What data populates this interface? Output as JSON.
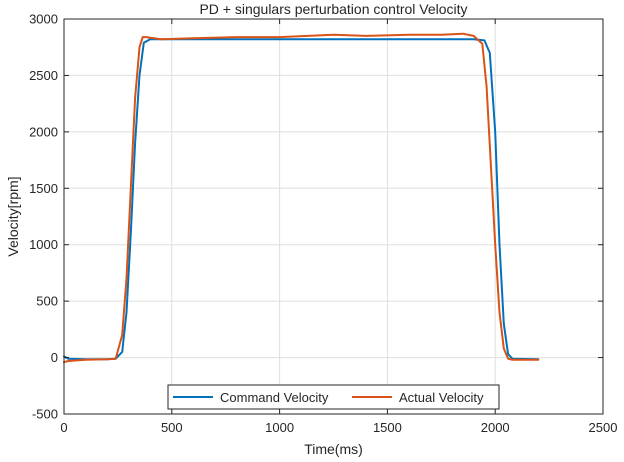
{
  "chart_data": {
    "type": "line",
    "title": "PD + singulars perturbation control Velocity",
    "xlabel": "Time(ms)",
    "ylabel": "Velocity[rpm]",
    "xlim": [
      0,
      2500
    ],
    "ylim": [
      -500,
      3000
    ],
    "xticks": [
      0,
      500,
      1000,
      1500,
      2000,
      2500
    ],
    "yticks": [
      -500,
      0,
      500,
      1000,
      1500,
      2000,
      2500,
      3000
    ],
    "grid": true,
    "legend_position": "bottom-center",
    "series": [
      {
        "name": "Command Velocity",
        "color": "#0072BD",
        "x": [
          0,
          20,
          100,
          200,
          240,
          270,
          290,
          310,
          330,
          350,
          370,
          400,
          500,
          1000,
          1500,
          1900,
          1950,
          1975,
          2000,
          2020,
          2040,
          2060,
          2080,
          2200
        ],
        "y": [
          10,
          -10,
          -15,
          -15,
          -10,
          50,
          400,
          1100,
          1900,
          2500,
          2790,
          2820,
          2820,
          2820,
          2820,
          2820,
          2810,
          2700,
          2000,
          1000,
          300,
          30,
          -10,
          -15
        ]
      },
      {
        "name": "Actual Velocity",
        "color": "#D95319",
        "x": [
          0,
          20,
          100,
          200,
          240,
          270,
          290,
          310,
          330,
          350,
          365,
          380,
          450,
          600,
          800,
          1000,
          1250,
          1400,
          1600,
          1750,
          1850,
          1900,
          1940,
          1960,
          1980,
          2000,
          2020,
          2040,
          2060,
          2080,
          2200
        ],
        "y": [
          -40,
          -30,
          -20,
          -15,
          -10,
          200,
          700,
          1500,
          2300,
          2750,
          2840,
          2840,
          2820,
          2830,
          2840,
          2840,
          2860,
          2850,
          2860,
          2860,
          2870,
          2850,
          2780,
          2400,
          1700,
          1000,
          400,
          80,
          -10,
          -20,
          -20
        ]
      }
    ]
  }
}
